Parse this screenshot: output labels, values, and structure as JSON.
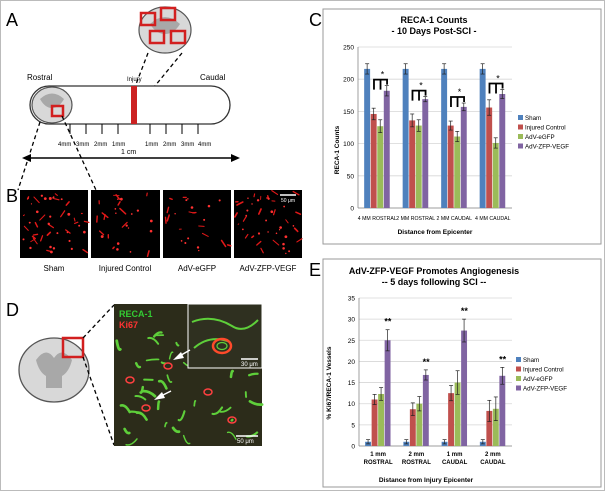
{
  "panel_labels": [
    "A",
    "B",
    "C",
    "D",
    "E"
  ],
  "panel_a": {
    "rostral": "Rostral",
    "caudal": "Caudal",
    "injury": "Injury",
    "ticks_left": [
      "4mm",
      "3mm",
      "2mm",
      "1mm"
    ],
    "ticks_right": [
      "1mm",
      "2mm",
      "3mm",
      "4mm"
    ],
    "scale": "1 cm"
  },
  "panel_b": {
    "scale_bar": "50 μm",
    "captions": [
      "Sham",
      "Injured Control",
      "AdV-eGFP",
      "AdV-ZFP-VEGF"
    ]
  },
  "panel_d": {
    "legend": [
      "RECA-1",
      "Ki67"
    ],
    "scale_inset": "30 μm",
    "scale_main": "50 μm"
  },
  "colors": {
    "sham": "#4f81bd",
    "injured": "#c0504d",
    "egfp": "#9bbb59",
    "zfp": "#8064a2",
    "reca": "#33cc33",
    "ki67": "#ff3333",
    "injury_bar": "#cc2222"
  },
  "chart_data": [
    {
      "type": "bar",
      "title": "RECA-1 Counts",
      "subtitle": "- 10 Days Post-SCI -",
      "categories": [
        "4 MM ROSTRAL",
        "2 MM ROSTRAL",
        "2 MM CAUDAL",
        "4 MM CAUDAL"
      ],
      "series": [
        {
          "name": "Sham",
          "values": [
            216,
            216,
            216,
            216
          ],
          "errors": [
            8,
            8,
            8,
            8
          ]
        },
        {
          "name": "Injured Control",
          "values": [
            146,
            136,
            128,
            156
          ],
          "errors": [
            9,
            10,
            7,
            12
          ]
        },
        {
          "name": "AdV-eGFP",
          "values": [
            127,
            128,
            111,
            101
          ],
          "errors": [
            10,
            9,
            8,
            8
          ]
        },
        {
          "name": "AdV-ZFP-VEGF",
          "values": [
            182,
            169,
            157,
            177
          ],
          "errors": [
            8,
            4,
            6,
            7
          ]
        }
      ],
      "significance": [
        "*",
        "*",
        "*",
        "*"
      ],
      "xlabel": "Distance from Epicenter",
      "ylabel": "RECA-1 Counts",
      "ylim": [
        0,
        250
      ],
      "yticks": [
        0,
        50,
        100,
        150,
        200,
        250
      ],
      "legend_position": "right",
      "grid": true
    },
    {
      "type": "bar",
      "title": "AdV-ZFP-VEGF Promotes Angiogenesis",
      "subtitle": "-- 5 days following SCI --",
      "categories": [
        "1 mm ROSTRAL",
        "2 mm ROSTRAL",
        "1 mm CAUDAL",
        "2 mm CAUDAL"
      ],
      "category_lines": [
        [
          "1 mm",
          "ROSTRAL"
        ],
        [
          "2 mm",
          "ROSTRAL"
        ],
        [
          "1 mm",
          "CAUDAL"
        ],
        [
          "2 mm",
          "CAUDAL"
        ]
      ],
      "series": [
        {
          "name": "Sham",
          "values": [
            1,
            1,
            1,
            1
          ],
          "errors": [
            0.5,
            0.5,
            0.5,
            0.5
          ]
        },
        {
          "name": "Injured Control",
          "values": [
            11,
            8.7,
            12.5,
            8.3
          ],
          "errors": [
            1.2,
            1.5,
            1.8,
            2.5
          ]
        },
        {
          "name": "AdV-eGFP",
          "values": [
            12.3,
            10,
            15,
            8.8
          ],
          "errors": [
            1.5,
            1.7,
            2.8,
            2.8
          ]
        },
        {
          "name": "AdV-ZFP-VEGF",
          "values": [
            25,
            16.8,
            27.3,
            16.6
          ],
          "errors": [
            2.5,
            1.2,
            2.7,
            2
          ]
        }
      ],
      "significance": [
        "**",
        "**",
        "**",
        "**"
      ],
      "xlabel": "Distance from Injury Epicenter",
      "ylabel": "% Ki67/RECA-1 Vessels",
      "ylim": [
        0,
        35
      ],
      "yticks": [
        0,
        5,
        10,
        15,
        20,
        25,
        30,
        35
      ],
      "legend_position": "right",
      "grid": true
    }
  ]
}
